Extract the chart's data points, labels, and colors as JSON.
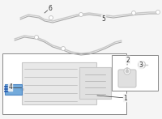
{
  "bg_color": "#f5f5f5",
  "line_color": "#aaaaaa",
  "part_color": "#c8c8c8",
  "highlight_color": "#5b9bd5",
  "box_color": "#ffffff",
  "box_edge": "#888888",
  "label_color": "#333333",
  "title": "",
  "figsize": [
    2.0,
    1.47
  ],
  "dpi": 100
}
